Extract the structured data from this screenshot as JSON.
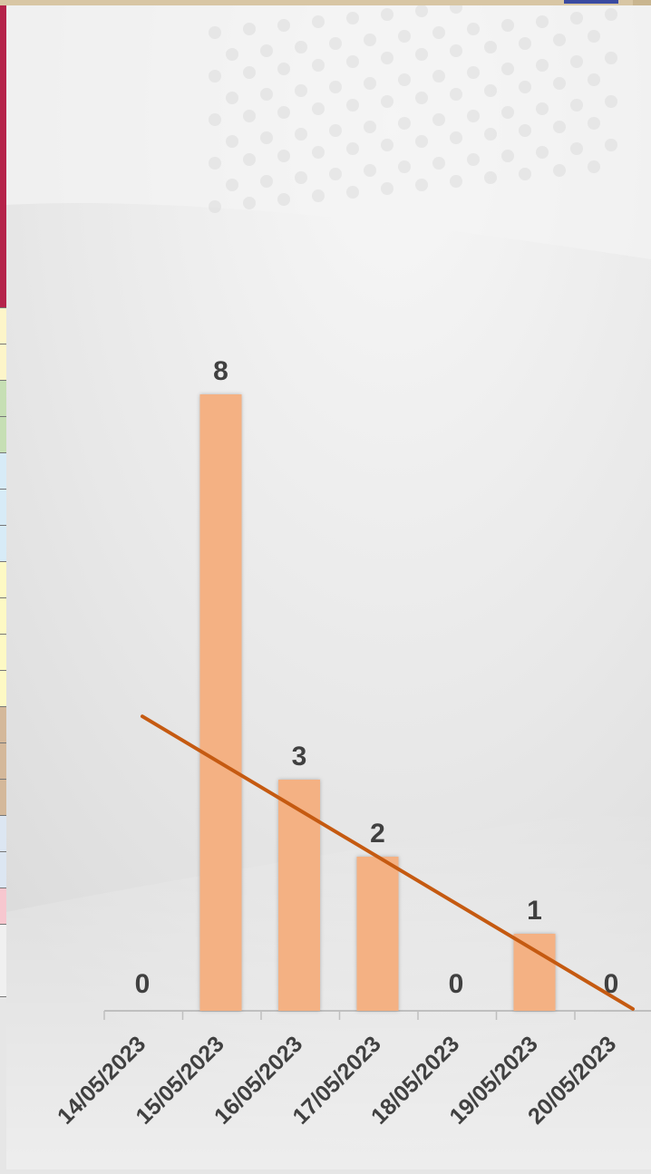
{
  "chart_data": {
    "type": "bar",
    "categories": [
      "14/05/2023",
      "15/05/2023",
      "16/05/2023",
      "17/05/2023",
      "18/05/2023",
      "19/05/2023",
      "20/05/2023"
    ],
    "values": [
      0,
      8,
      3,
      2,
      0,
      1,
      0
    ],
    "data_labels": [
      "0",
      "8",
      "3",
      "2",
      "0",
      "1",
      "0"
    ],
    "trendline": {
      "type": "linear"
    },
    "ylim": [
      0,
      8
    ],
    "grid": false,
    "legend": "none",
    "title": "",
    "xlabel": "",
    "ylabel": ""
  },
  "colors": {
    "bar": "#f4b183",
    "trendline": "#c55a11",
    "label_text": "#404040",
    "axis": "#bfbfbf"
  },
  "left_strip_colors": [
    "#b5234a",
    "#fdf5c9",
    "#fdf5c9",
    "#c6dfb4",
    "#c6dfb4",
    "#d7ebf7",
    "#d7ebf7",
    "#d7ebf7",
    "#fdf9c4",
    "#fdf9c4",
    "#fdf9c4",
    "#fdf9c4",
    "#d4b89a",
    "#d4b89a",
    "#d4b89a",
    "#dce6f2",
    "#dce6f2",
    "#f7c7cf",
    "#f0f0f0"
  ]
}
